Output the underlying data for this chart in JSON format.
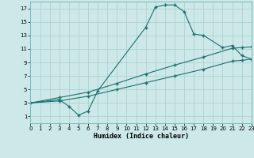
{
  "xlabel": "Humidex (Indice chaleur)",
  "xlim": [
    0,
    23
  ],
  "ylim": [
    0,
    18
  ],
  "xticks": [
    0,
    1,
    2,
    3,
    4,
    5,
    6,
    7,
    8,
    9,
    10,
    11,
    12,
    13,
    14,
    15,
    16,
    17,
    18,
    19,
    20,
    21,
    22,
    23
  ],
  "yticks": [
    1,
    3,
    5,
    7,
    9,
    11,
    13,
    15,
    17
  ],
  "bg_color": "#cce8e8",
  "grid_color": "#aacece",
  "line_color": "#1a7070",
  "curve_x": [
    0,
    3,
    4,
    5,
    6,
    7,
    12,
    13,
    14,
    15,
    16,
    17,
    18,
    20,
    21,
    22,
    23
  ],
  "curve_y": [
    3.0,
    3.5,
    2.5,
    1.2,
    1.8,
    4.8,
    14.2,
    17.2,
    17.5,
    17.5,
    16.5,
    13.2,
    13.0,
    11.2,
    11.5,
    10.0,
    9.5
  ],
  "line_a_x": [
    0,
    3,
    6,
    9,
    12,
    15,
    18,
    21,
    22,
    23
  ],
  "line_a_y": [
    3.0,
    3.8,
    4.6,
    5.9,
    7.3,
    8.6,
    9.8,
    11.1,
    11.2,
    11.3
  ],
  "line_b_x": [
    0,
    3,
    6,
    9,
    12,
    15,
    18,
    21,
    22,
    23
  ],
  "line_b_y": [
    3.0,
    3.3,
    4.0,
    5.0,
    6.0,
    7.0,
    8.0,
    9.2,
    9.3,
    9.5
  ]
}
